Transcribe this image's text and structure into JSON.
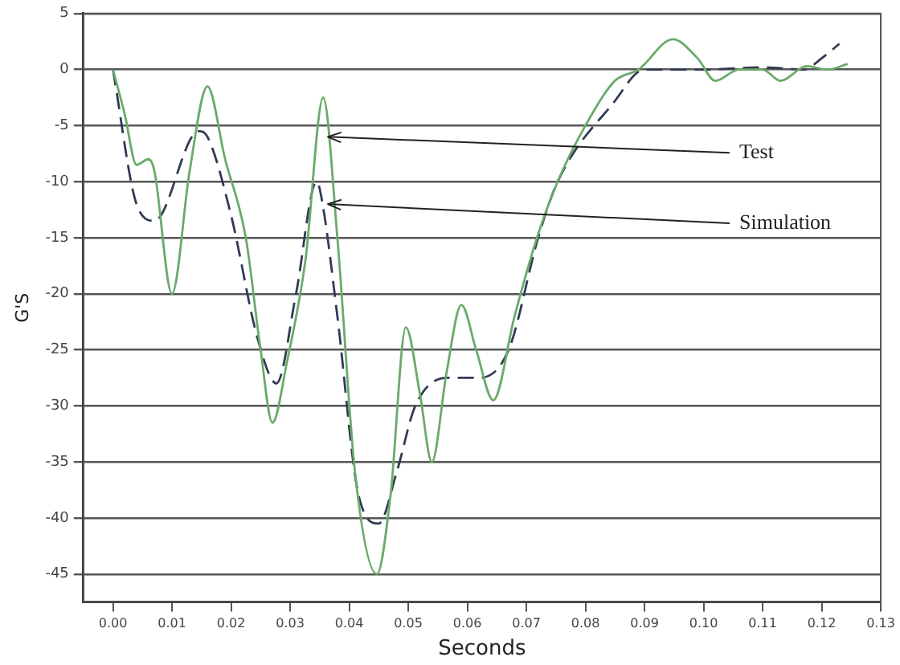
{
  "chart_data": {
    "type": "line",
    "xlabel": "Seconds",
    "ylabel": "G'S",
    "xlim": [
      -0.005,
      0.13
    ],
    "xticks": [
      {
        "value": 0,
        "label": "0.00"
      },
      {
        "value": 0.01,
        "label": "0.01"
      },
      {
        "value": 0.02,
        "label": "0.02"
      },
      {
        "value": 0.03,
        "label": "0.03"
      },
      {
        "value": 0.04,
        "label": "0.04"
      },
      {
        "value": 0.05,
        "label": "0.05"
      },
      {
        "value": 0.06,
        "label": "0.06"
      },
      {
        "value": 0.07,
        "label": "0.07"
      },
      {
        "value": 0.08,
        "label": "0.08"
      },
      {
        "value": 0.09,
        "label": "0.09"
      },
      {
        "value": 0.1,
        "label": "0.10"
      },
      {
        "value": 0.11,
        "label": "0.11"
      },
      {
        "value": 0.12,
        "label": "0.12"
      },
      {
        "value": 0.13,
        "label": "0.13"
      }
    ],
    "ylim": [
      -47.5,
      5
    ],
    "yticks": [
      -45,
      -40,
      -35,
      -30,
      -25,
      -20,
      -15,
      -10,
      -5,
      0,
      5
    ],
    "grid": "y",
    "legend": false,
    "marker": "none",
    "series": [
      {
        "color": "#6aaa6a",
        "line_style": "solid",
        "x": [
          0,
          0.002,
          0.004,
          0.006,
          0.007,
          0.01,
          0.013,
          0.016,
          0.019,
          0.0225,
          0.025,
          0.027,
          0.0295,
          0.0326,
          0.0356,
          0.038,
          0.041,
          0.0447,
          0.047,
          0.0496,
          0.052,
          0.054,
          0.0565,
          0.059,
          0.0615,
          0.0644,
          0.068,
          0.0718,
          0.0753,
          0.08,
          0.085,
          0.089,
          0.0948,
          0.099,
          0.102,
          0.106,
          0.11,
          0.113,
          0.1175,
          0.121,
          0.1244
        ],
        "values": [
          0,
          -4,
          -8.5,
          -8,
          -9,
          -20,
          -9,
          -1.5,
          -8,
          -15,
          -25,
          -31.5,
          -26,
          -17,
          -2.5,
          -15,
          -36,
          -45,
          -38,
          -23,
          -29,
          -35,
          -27,
          -21,
          -25,
          -29.5,
          -22,
          -15,
          -10,
          -5,
          -1,
          0,
          2.7,
          1,
          -1,
          0,
          0,
          -1,
          0.3,
          0,
          0.5
        ]
      },
      {
        "color": "#333a55",
        "line_style": "dashed",
        "x": [
          0,
          0.004,
          0.007,
          0.0145,
          0.016,
          0.02,
          0.0245,
          0.0277,
          0.031,
          0.0345,
          0.0355,
          0.038,
          0.0416,
          0.045,
          0.048,
          0.0512,
          0.0567,
          0.062,
          0.067,
          0.072,
          0.0753,
          0.0847,
          0.09,
          0.1,
          0.11,
          0.117,
          0.12,
          0.123
        ],
        "values": [
          0,
          -12,
          -13.5,
          -5.5,
          -6,
          -13,
          -24,
          -28,
          -20,
          -10,
          -12,
          -22,
          -38,
          -40.5,
          -36,
          -30,
          -27.5,
          -27.5,
          -25,
          -15,
          -10,
          -3,
          0,
          0,
          0.2,
          0,
          1,
          2.3
        ]
      }
    ],
    "annotations": [
      {
        "text": "Test",
        "x": 0.0358,
        "y": -6
      },
      {
        "text": "Simulation",
        "x": 0.0358,
        "y": -12
      }
    ]
  }
}
